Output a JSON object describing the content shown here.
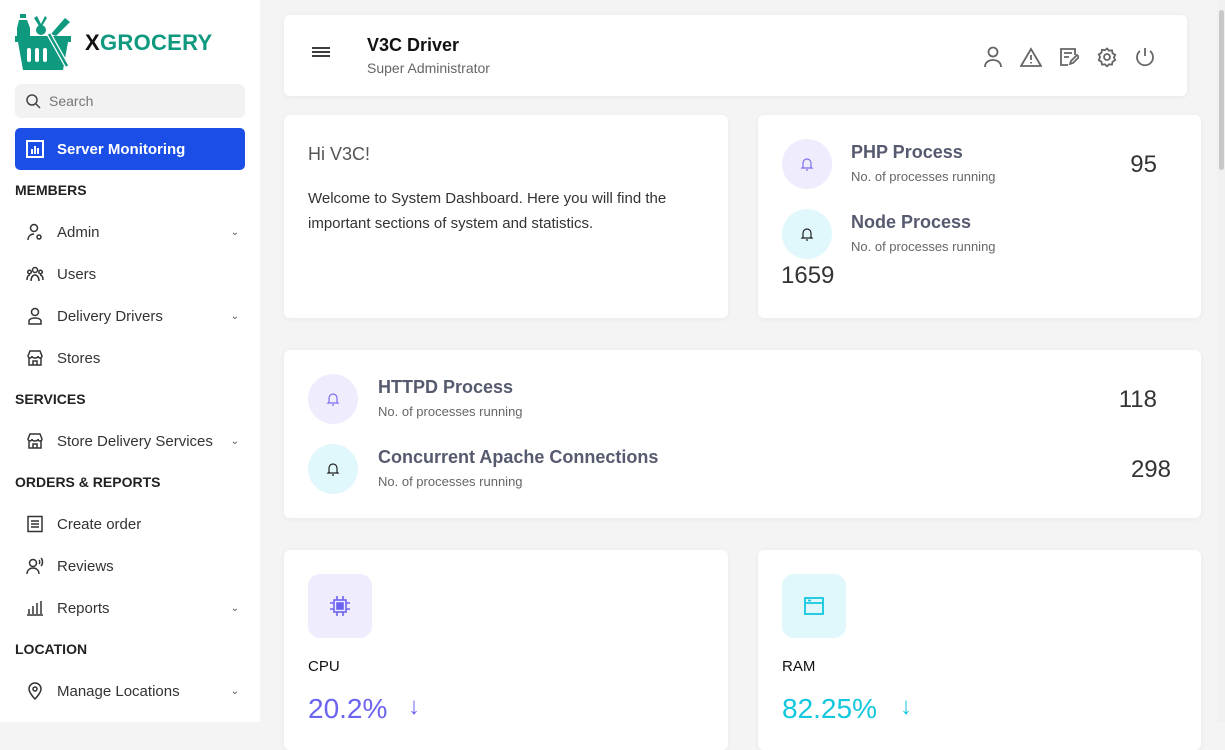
{
  "brand": {
    "prefix": "X",
    "name": "GROCERY",
    "color": "#0f9a80"
  },
  "search": {
    "placeholder": "Search"
  },
  "sidebar": {
    "active": {
      "label": "Server Monitoring",
      "icon": "chart-icon"
    },
    "sections": [
      {
        "title": "MEMBERS",
        "items": [
          {
            "label": "Admin",
            "chevron": true
          },
          {
            "label": "Users"
          },
          {
            "label": "Delivery Drivers",
            "chevron": true
          },
          {
            "label": "Stores"
          }
        ]
      },
      {
        "title": "SERVICES",
        "items": [
          {
            "label": "Store Delivery Services",
            "chevron": true
          }
        ]
      },
      {
        "title": "ORDERS & REPORTS",
        "items": [
          {
            "label": "Create order"
          },
          {
            "label": "Reviews"
          },
          {
            "label": "Reports",
            "chevron": true
          }
        ]
      },
      {
        "title": "LOCATION",
        "items": [
          {
            "label": "Manage Locations",
            "chevron": true
          }
        ]
      }
    ]
  },
  "header": {
    "title": "V3C Driver",
    "subtitle": "Super Administrator",
    "icons": [
      "user-icon",
      "alert-icon",
      "edit-icon",
      "settings-icon",
      "power-icon"
    ]
  },
  "welcome": {
    "greeting": "Hi V3C!",
    "text": "Welcome to System Dashboard. Here you will find the important sections of system and statistics."
  },
  "processes": [
    {
      "title": "PHP Process",
      "sub": "No. of processes running",
      "value": "95"
    },
    {
      "title": "Node Process",
      "sub": "No. of processes running",
      "value": "1659"
    },
    {
      "title": "HTTPD Process",
      "sub": "No. of processes running",
      "value": "118"
    },
    {
      "title": "Concurrent Apache Connections",
      "sub": "No. of processes running",
      "value": "298"
    }
  ],
  "resources": [
    {
      "label": "CPU",
      "value": "20.2%",
      "trend": "down",
      "color": "#6c63f0"
    },
    {
      "label": "RAM",
      "value": "82.25%",
      "trend": "down",
      "color": "#12c7de"
    }
  ],
  "trend_arrow": "↓",
  "colors": {
    "accent": "#1a4ee6",
    "purple_bg": "#efedfd",
    "cyan_bg": "#e0f8fb"
  }
}
